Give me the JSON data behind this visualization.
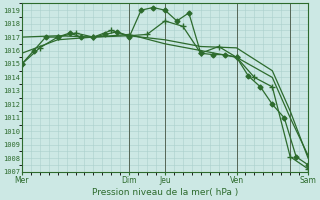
{
  "xlabel": "Pression niveau de la mer( hPa )",
  "bg_color": "#cce8e4",
  "grid_major_color": "#aad0cc",
  "grid_minor_color": "#cce8e4",
  "line_color": "#2d6b2d",
  "ylim": [
    1007,
    1019.5
  ],
  "yticks": [
    1007,
    1008,
    1009,
    1010,
    1011,
    1012,
    1013,
    1014,
    1015,
    1016,
    1017,
    1018,
    1019
  ],
  "xtick_labels": [
    "Mer",
    "",
    "Dim",
    "Jeu",
    "",
    "Ven",
    "",
    "Sam"
  ],
  "xtick_positions": [
    0,
    18,
    36,
    48,
    60,
    72,
    84,
    96
  ],
  "x_total": 96,
  "vline_color": "#556655",
  "vlines": [
    0,
    36,
    48,
    72,
    90
  ],
  "series": [
    {
      "x": [
        0,
        4,
        8,
        12,
        16,
        20,
        24,
        28,
        32,
        36,
        40,
        44,
        48,
        52,
        56,
        60,
        64,
        68,
        72,
        76,
        80,
        84,
        88,
        92,
        96
      ],
      "y": [
        1015.0,
        1016.0,
        1017.0,
        1017.0,
        1017.3,
        1017.0,
        1017.0,
        1017.2,
        1017.4,
        1017.0,
        1019.0,
        1019.2,
        1019.0,
        1018.2,
        1018.8,
        1015.8,
        1015.7,
        1015.7,
        1015.5,
        1014.1,
        1013.3,
        1012.0,
        1011.0,
        1008.1,
        1007.5
      ],
      "marker": "D",
      "markersize": 2.5,
      "lw": 0.9
    },
    {
      "x": [
        0,
        12,
        24,
        36,
        48,
        60,
        72,
        84,
        90,
        96
      ],
      "y": [
        1017.0,
        1017.1,
        1017.0,
        1017.1,
        1016.8,
        1016.3,
        1016.2,
        1014.5,
        1011.5,
        1008.0
      ],
      "marker": null,
      "markersize": 0,
      "lw": 0.9
    },
    {
      "x": [
        0,
        12,
        24,
        36,
        48,
        60,
        72,
        84,
        90,
        96
      ],
      "y": [
        1015.8,
        1016.8,
        1017.0,
        1017.2,
        1016.5,
        1016.0,
        1015.5,
        1014.0,
        1011.0,
        1008.2
      ],
      "marker": null,
      "markersize": 0,
      "lw": 0.9
    },
    {
      "x": [
        0,
        6,
        12,
        18,
        24,
        30,
        36,
        42,
        48,
        54,
        60,
        66,
        72,
        78,
        84,
        90,
        96
      ],
      "y": [
        1015.0,
        1016.2,
        1017.0,
        1017.3,
        1017.0,
        1017.5,
        1017.1,
        1017.2,
        1018.2,
        1017.8,
        1015.8,
        1016.3,
        1015.5,
        1014.0,
        1013.3,
        1008.1,
        1007.2
      ],
      "marker": "+",
      "markersize": 4.5,
      "lw": 0.9
    }
  ]
}
